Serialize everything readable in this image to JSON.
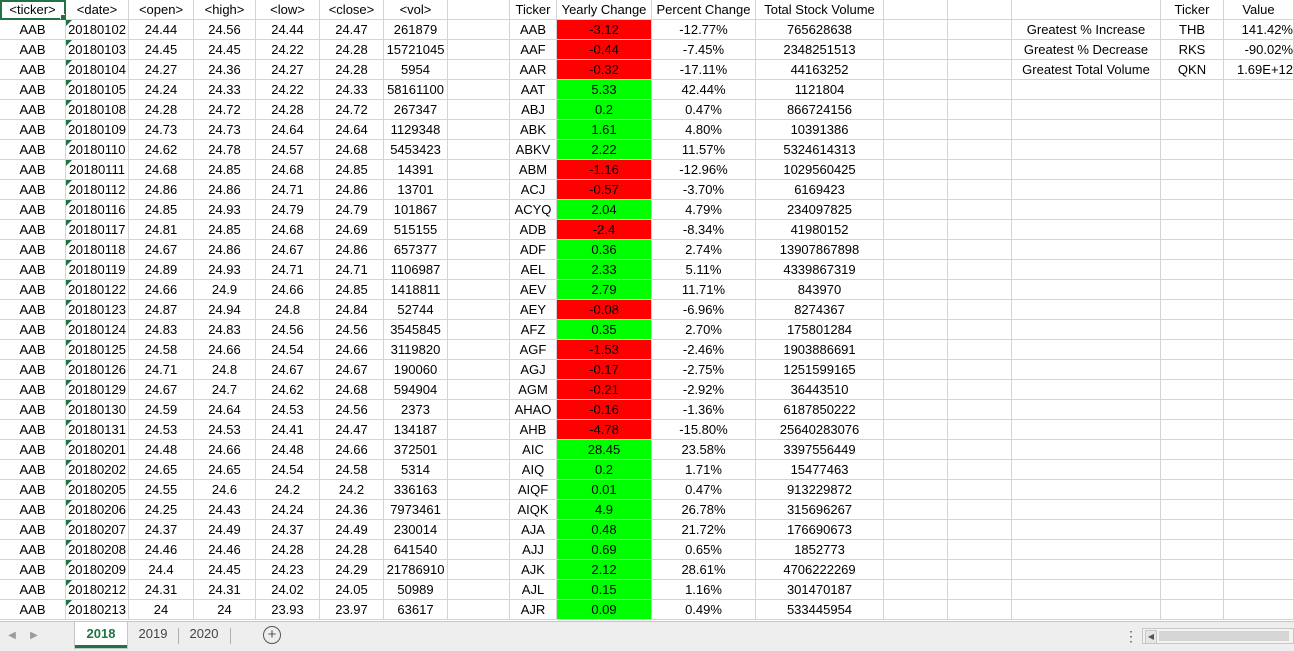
{
  "headers": {
    "A": "<ticker>",
    "B": "<date>",
    "C": "<open>",
    "D": "<high>",
    "E": "<low>",
    "F": "<close>",
    "G": "<vol>",
    "I": "Ticker",
    "J": "Yearly Change",
    "K": "Percent Change",
    "L": "Total Stock Volume",
    "P": "Ticker",
    "Q": "Value"
  },
  "raw_rows": [
    [
      "AAB",
      "20180102",
      "24.44",
      "24.56",
      "24.44",
      "24.47",
      "261879"
    ],
    [
      "AAB",
      "20180103",
      "24.45",
      "24.45",
      "24.22",
      "24.28",
      "15721045"
    ],
    [
      "AAB",
      "20180104",
      "24.27",
      "24.36",
      "24.27",
      "24.28",
      "5954"
    ],
    [
      "AAB",
      "20180105",
      "24.24",
      "24.33",
      "24.22",
      "24.33",
      "58161100"
    ],
    [
      "AAB",
      "20180108",
      "24.28",
      "24.72",
      "24.28",
      "24.72",
      "267347"
    ],
    [
      "AAB",
      "20180109",
      "24.73",
      "24.73",
      "24.64",
      "24.64",
      "1129348"
    ],
    [
      "AAB",
      "20180110",
      "24.62",
      "24.78",
      "24.57",
      "24.68",
      "5453423"
    ],
    [
      "AAB",
      "20180111",
      "24.68",
      "24.85",
      "24.68",
      "24.85",
      "14391"
    ],
    [
      "AAB",
      "20180112",
      "24.86",
      "24.86",
      "24.71",
      "24.86",
      "13701"
    ],
    [
      "AAB",
      "20180116",
      "24.85",
      "24.93",
      "24.79",
      "24.79",
      "101867"
    ],
    [
      "AAB",
      "20180117",
      "24.81",
      "24.85",
      "24.68",
      "24.69",
      "515155"
    ],
    [
      "AAB",
      "20180118",
      "24.67",
      "24.86",
      "24.67",
      "24.86",
      "657377"
    ],
    [
      "AAB",
      "20180119",
      "24.89",
      "24.93",
      "24.71",
      "24.71",
      "1106987"
    ],
    [
      "AAB",
      "20180122",
      "24.66",
      "24.9",
      "24.66",
      "24.85",
      "1418811"
    ],
    [
      "AAB",
      "20180123",
      "24.87",
      "24.94",
      "24.8",
      "24.84",
      "52744"
    ],
    [
      "AAB",
      "20180124",
      "24.83",
      "24.83",
      "24.56",
      "24.56",
      "3545845"
    ],
    [
      "AAB",
      "20180125",
      "24.58",
      "24.66",
      "24.54",
      "24.66",
      "3119820"
    ],
    [
      "AAB",
      "20180126",
      "24.71",
      "24.8",
      "24.67",
      "24.67",
      "190060"
    ],
    [
      "AAB",
      "20180129",
      "24.67",
      "24.7",
      "24.62",
      "24.68",
      "594904"
    ],
    [
      "AAB",
      "20180130",
      "24.59",
      "24.64",
      "24.53",
      "24.56",
      "2373"
    ],
    [
      "AAB",
      "20180131",
      "24.53",
      "24.53",
      "24.41",
      "24.47",
      "134187"
    ],
    [
      "AAB",
      "20180201",
      "24.48",
      "24.66",
      "24.48",
      "24.66",
      "372501"
    ],
    [
      "AAB",
      "20180202",
      "24.65",
      "24.65",
      "24.54",
      "24.58",
      "5314"
    ],
    [
      "AAB",
      "20180205",
      "24.55",
      "24.6",
      "24.2",
      "24.2",
      "336163"
    ],
    [
      "AAB",
      "20180206",
      "24.25",
      "24.43",
      "24.24",
      "24.36",
      "7973461"
    ],
    [
      "AAB",
      "20180207",
      "24.37",
      "24.49",
      "24.37",
      "24.49",
      "230014"
    ],
    [
      "AAB",
      "20180208",
      "24.46",
      "24.46",
      "24.28",
      "24.28",
      "641540"
    ],
    [
      "AAB",
      "20180209",
      "24.4",
      "24.45",
      "24.23",
      "24.29",
      "21786910"
    ],
    [
      "AAB",
      "20180212",
      "24.31",
      "24.31",
      "24.02",
      "24.05",
      "50989"
    ],
    [
      "AAB",
      "20180213",
      "24",
      "24",
      "23.93",
      "23.97",
      "63617"
    ]
  ],
  "summary_rows": [
    [
      "AAB",
      "-3.12",
      "-12.77%",
      "765628638",
      "neg"
    ],
    [
      "AAF",
      "-0.44",
      "-7.45%",
      "2348251513",
      "neg"
    ],
    [
      "AAR",
      "-0.32",
      "-17.11%",
      "44163252",
      "neg"
    ],
    [
      "AAT",
      "5.33",
      "42.44%",
      "1121804",
      "pos"
    ],
    [
      "ABJ",
      "0.2",
      "0.47%",
      "866724156",
      "pos"
    ],
    [
      "ABK",
      "1.61",
      "4.80%",
      "10391386",
      "pos"
    ],
    [
      "ABKV",
      "2.22",
      "11.57%",
      "5324614313",
      "pos"
    ],
    [
      "ABM",
      "-1.16",
      "-12.96%",
      "1029560425",
      "neg"
    ],
    [
      "ACJ",
      "-0.57",
      "-3.70%",
      "6169423",
      "neg"
    ],
    [
      "ACYQ",
      "2.04",
      "4.79%",
      "234097825",
      "pos"
    ],
    [
      "ADB",
      "-2.4",
      "-8.34%",
      "41980152",
      "neg"
    ],
    [
      "ADF",
      "0.36",
      "2.74%",
      "13907867898",
      "pos"
    ],
    [
      "AEL",
      "2.33",
      "5.11%",
      "4339867319",
      "pos"
    ],
    [
      "AEV",
      "2.79",
      "11.71%",
      "843970",
      "pos"
    ],
    [
      "AEY",
      "-0.08",
      "-6.96%",
      "8274367",
      "neg"
    ],
    [
      "AFZ",
      "0.35",
      "2.70%",
      "175801284",
      "pos"
    ],
    [
      "AGF",
      "-1.53",
      "-2.46%",
      "1903886691",
      "neg"
    ],
    [
      "AGJ",
      "-0.17",
      "-2.75%",
      "1251599165",
      "neg"
    ],
    [
      "AGM",
      "-0.21",
      "-2.92%",
      "36443510",
      "neg"
    ],
    [
      "AHAO",
      "-0.16",
      "-1.36%",
      "6187850222",
      "neg"
    ],
    [
      "AHB",
      "-4.78",
      "-15.80%",
      "25640283076",
      "neg"
    ],
    [
      "AIC",
      "28.45",
      "23.58%",
      "3397556449",
      "pos"
    ],
    [
      "AIQ",
      "0.2",
      "1.71%",
      "15477463",
      "pos"
    ],
    [
      "AIQF",
      "0.01",
      "0.47%",
      "913229872",
      "pos"
    ],
    [
      "AIQK",
      "4.9",
      "26.78%",
      "315696267",
      "pos"
    ],
    [
      "AJA",
      "0.48",
      "21.72%",
      "176690673",
      "pos"
    ],
    [
      "AJJ",
      "0.69",
      "0.65%",
      "1852773",
      "pos"
    ],
    [
      "AJK",
      "2.12",
      "28.61%",
      "4706222269",
      "pos"
    ],
    [
      "AJL",
      "0.15",
      "1.16%",
      "301470187",
      "pos"
    ],
    [
      "AJR",
      "0.09",
      "0.49%",
      "533445954",
      "pos"
    ]
  ],
  "greatest": [
    {
      "label": "Greatest % Increase",
      "ticker": "THB",
      "value": "141.42%"
    },
    {
      "label": "Greatest % Decrease",
      "ticker": "RKS",
      "value": "-90.02%"
    },
    {
      "label": "Greatest Total Volume",
      "ticker": "QKN",
      "value": "1.69E+12"
    }
  ],
  "tabs": [
    "2018",
    "2019",
    "2020"
  ],
  "active_tab": "2018",
  "colors": {
    "positive": "#00ff00",
    "negative": "#ff0000",
    "accent": "#217346",
    "grid": "#d4d4d4"
  },
  "icons": {
    "add_sheet": "plus-circle-icon",
    "prev": "triangle-left-icon",
    "next": "triangle-right-icon"
  }
}
